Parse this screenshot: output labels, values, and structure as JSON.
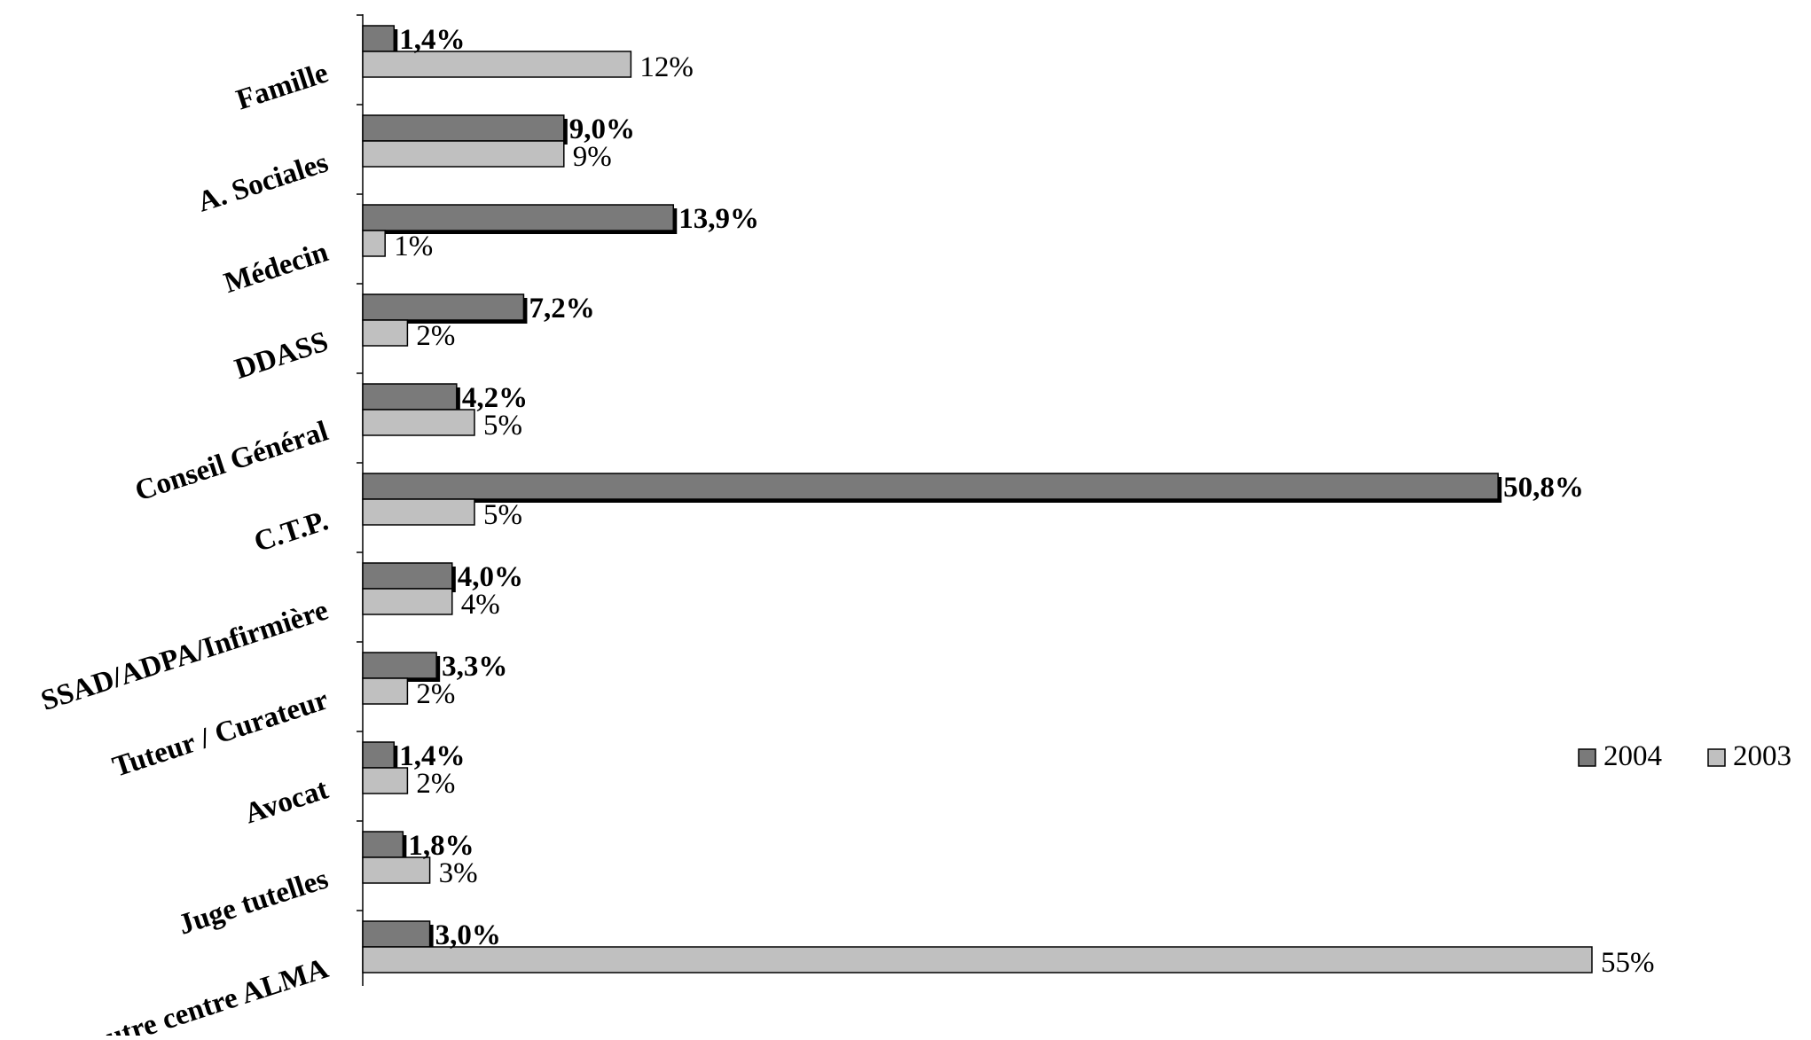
{
  "chart_data": {
    "type": "bar",
    "orientation": "horizontal",
    "categories": [
      "Famille",
      "A. Sociales",
      "Médecin",
      "DDASS",
      "Conseil Général",
      "C.T.P.",
      "SSAD/ADPA/Infirmière",
      "Tuteur / Curateur",
      "Avocat",
      "Juge tutelles",
      "autre centre ALMA"
    ],
    "series": [
      {
        "name": "2004",
        "color": "#7a7a7a",
        "values": [
          1.4,
          9.0,
          13.9,
          7.2,
          4.2,
          50.8,
          4.0,
          3.3,
          1.4,
          1.8,
          3.0
        ],
        "labels": [
          "1,4%",
          "9,0%",
          "13,9%",
          "7,2%",
          "4,2%",
          "50,8%",
          "4,0%",
          "3,3%",
          "1,4%",
          "1,8%",
          "3,0%"
        ]
      },
      {
        "name": "2003",
        "color": "#c0c0c0",
        "values": [
          12,
          9,
          1,
          2,
          5,
          5,
          4,
          2,
          2,
          3,
          55
        ],
        "labels": [
          "12%",
          "9%",
          "1%",
          "2%",
          "5%",
          "5%",
          "4%",
          "2%",
          "2%",
          "3%",
          "55%"
        ]
      }
    ],
    "xlim": [
      0,
      55
    ],
    "grid": false,
    "legend_position": "right"
  }
}
